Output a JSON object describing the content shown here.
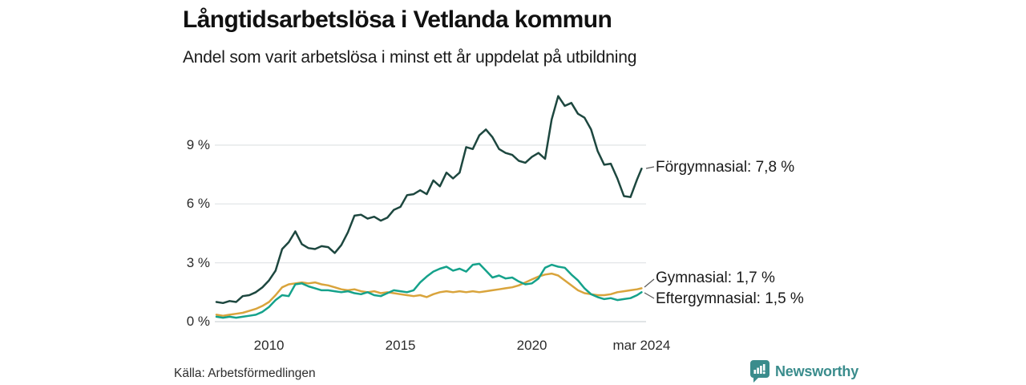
{
  "header": {
    "title": "Långtidsarbetslösa i Vetlanda kommun",
    "subtitle": "Andel som varit arbetslösa i minst ett år uppdelat på utbildning"
  },
  "source": "Källa: Arbetsförmedlingen",
  "logo": {
    "text": "Newsworthy",
    "icon": "bar-chart-speech-bubble-icon",
    "color": "#3a8c8c"
  },
  "colors": {
    "forgymnasial": "#1d473f",
    "gymnasial": "#d9a43c",
    "eftergymnasial": "#15a28b",
    "grid": "#e3e6e8",
    "baseline": "#cfd4d6",
    "connector": "#5a5a5a",
    "text": "#1a1a1a"
  },
  "chart_data": {
    "type": "line",
    "title": "Långtidsarbetslösa i Vetlanda kommun",
    "subtitle": "Andel som varit arbetslösa i minst ett år uppdelat på utbildning",
    "unit": "%",
    "grid": true,
    "legend_position": "right-edge-labels",
    "x_axis": {
      "range": [
        2008,
        2024.25
      ],
      "ticks": [
        {
          "t": 2010,
          "label": "2010"
        },
        {
          "t": 2015,
          "label": "2015"
        },
        {
          "t": 2020,
          "label": "2020"
        },
        {
          "t": 2024.17,
          "label": "mar 2024"
        }
      ]
    },
    "y_axis": {
      "range": [
        0,
        11.9
      ],
      "ticks": [
        {
          "v": 0,
          "label": "0 %"
        },
        {
          "v": 3,
          "label": "3 %"
        },
        {
          "v": 6,
          "label": "6 %"
        },
        {
          "v": 9,
          "label": "9 %"
        }
      ]
    },
    "x": [
      2008,
      2008.25,
      2008.5,
      2008.75,
      2009,
      2009.25,
      2009.5,
      2009.75,
      2010,
      2010.25,
      2010.5,
      2010.75,
      2011,
      2011.25,
      2011.5,
      2011.75,
      2012,
      2012.25,
      2012.5,
      2012.75,
      2013,
      2013.25,
      2013.5,
      2013.75,
      2014,
      2014.25,
      2014.5,
      2014.75,
      2015,
      2015.25,
      2015.5,
      2015.75,
      2016,
      2016.25,
      2016.5,
      2016.75,
      2017,
      2017.25,
      2017.5,
      2017.75,
      2018,
      2018.25,
      2018.5,
      2018.75,
      2019,
      2019.25,
      2019.5,
      2019.75,
      2020,
      2020.25,
      2020.5,
      2020.75,
      2021,
      2021.25,
      2021.5,
      2021.75,
      2022,
      2022.25,
      2022.5,
      2022.75,
      2023,
      2023.25,
      2023.5,
      2023.75,
      2024,
      2024.17
    ],
    "series": [
      {
        "name": "Förgymnasial",
        "label": "Förgymnasial: 7,8 %",
        "latest_value": 7.8,
        "color": "#1d473f",
        "values": [
          1.0,
          0.95,
          1.05,
          1.0,
          1.3,
          1.35,
          1.5,
          1.75,
          2.1,
          2.6,
          3.7,
          4.05,
          4.6,
          3.95,
          3.75,
          3.7,
          3.85,
          3.8,
          3.5,
          3.9,
          4.55,
          5.4,
          5.45,
          5.25,
          5.35,
          5.15,
          5.3,
          5.7,
          5.85,
          6.45,
          6.5,
          6.7,
          6.5,
          7.2,
          6.9,
          7.6,
          7.3,
          7.6,
          8.9,
          8.8,
          9.5,
          9.8,
          9.4,
          8.8,
          8.6,
          8.5,
          8.2,
          8.1,
          8.4,
          8.6,
          8.3,
          10.3,
          11.5,
          11.0,
          11.15,
          10.6,
          10.4,
          9.8,
          8.7,
          8.0,
          8.05,
          7.3,
          6.4,
          6.35,
          7.25,
          7.8
        ]
      },
      {
        "name": "Gymnasial",
        "label": "Gymnasial: 1,7 %",
        "latest_value": 1.7,
        "color": "#d9a43c",
        "values": [
          0.35,
          0.3,
          0.35,
          0.4,
          0.45,
          0.55,
          0.65,
          0.8,
          1.0,
          1.35,
          1.75,
          1.9,
          1.95,
          2.0,
          1.95,
          2.0,
          1.9,
          1.85,
          1.75,
          1.65,
          1.6,
          1.65,
          1.55,
          1.5,
          1.55,
          1.45,
          1.5,
          1.45,
          1.4,
          1.35,
          1.3,
          1.35,
          1.25,
          1.4,
          1.5,
          1.55,
          1.5,
          1.55,
          1.5,
          1.55,
          1.5,
          1.55,
          1.6,
          1.65,
          1.7,
          1.75,
          1.85,
          2.0,
          2.15,
          2.3,
          2.4,
          2.45,
          2.35,
          2.1,
          1.85,
          1.6,
          1.45,
          1.4,
          1.35,
          1.35,
          1.4,
          1.5,
          1.55,
          1.6,
          1.65,
          1.7
        ]
      },
      {
        "name": "Eftergymnasial",
        "label": "Eftergymnasial: 1,5 %",
        "latest_value": 1.5,
        "color": "#15a28b",
        "values": [
          0.25,
          0.2,
          0.25,
          0.2,
          0.25,
          0.3,
          0.35,
          0.5,
          0.75,
          1.1,
          1.35,
          1.3,
          1.9,
          1.95,
          1.8,
          1.7,
          1.6,
          1.6,
          1.55,
          1.5,
          1.55,
          1.45,
          1.4,
          1.5,
          1.35,
          1.3,
          1.45,
          1.6,
          1.55,
          1.5,
          1.6,
          2.0,
          2.3,
          2.55,
          2.7,
          2.8,
          2.6,
          2.7,
          2.55,
          2.9,
          2.95,
          2.6,
          2.25,
          2.35,
          2.2,
          2.25,
          2.05,
          1.9,
          1.95,
          2.2,
          2.75,
          2.9,
          2.8,
          2.75,
          2.4,
          2.1,
          1.7,
          1.4,
          1.25,
          1.15,
          1.2,
          1.1,
          1.15,
          1.2,
          1.35,
          1.5
        ]
      }
    ]
  }
}
